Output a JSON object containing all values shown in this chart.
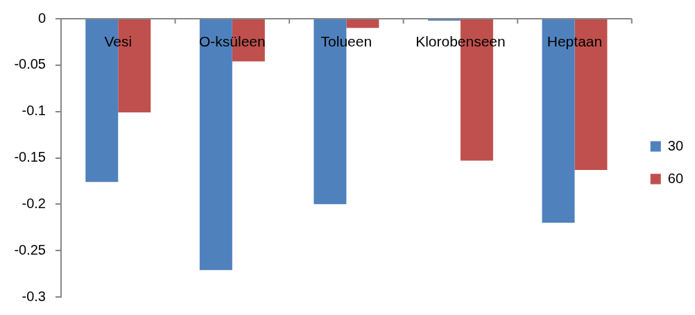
{
  "chart_data": {
    "type": "bar",
    "categories": [
      "Vesi",
      "O-ksüleen",
      "Tolueen",
      "Klorobenseen",
      "Heptaan"
    ],
    "series": [
      {
        "name": "30",
        "color": "#4f81bd",
        "values": [
          -0.176,
          -0.271,
          -0.2,
          -0.002,
          -0.22
        ]
      },
      {
        "name": "60",
        "color": "#c0504d",
        "values": [
          -0.101,
          -0.046,
          -0.01,
          -0.153,
          -0.163
        ]
      }
    ],
    "ylim": [
      -0.3,
      0
    ],
    "yticks": [
      0,
      -0.05,
      -0.1,
      -0.15,
      -0.2,
      -0.25,
      -0.3
    ],
    "legend": "right"
  }
}
